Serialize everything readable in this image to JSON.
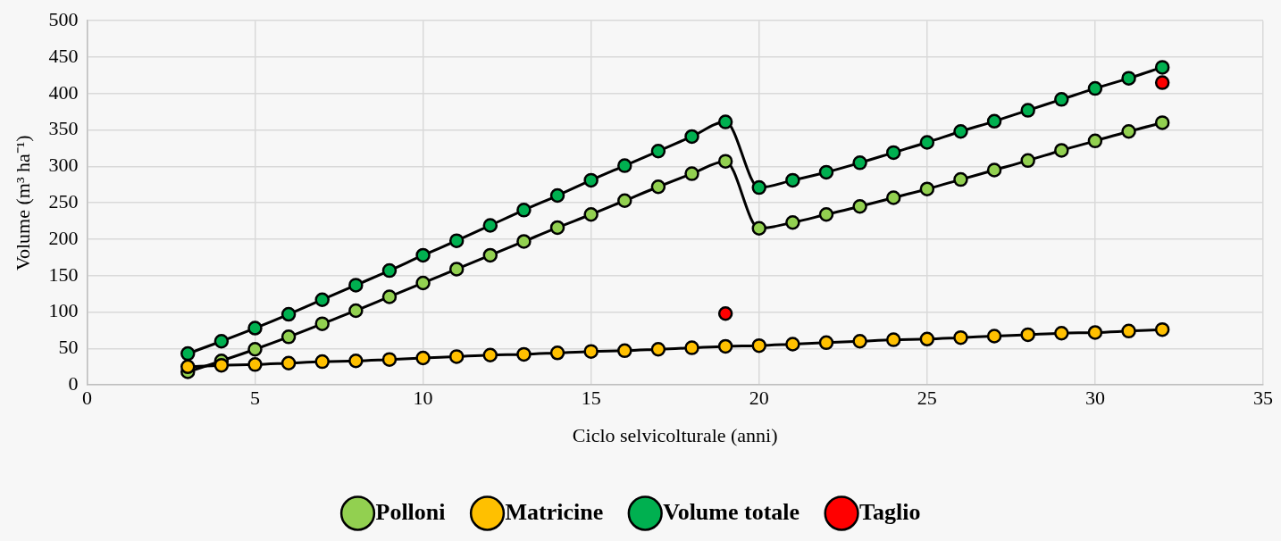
{
  "chart_data": {
    "type": "line",
    "xlabel": "Ciclo selvicolturale (anni)",
    "ylabel": "Volume (m³ ha⁻¹)",
    "xlim": [
      0,
      35
    ],
    "xticks": [
      0,
      5,
      10,
      15,
      20,
      25,
      30,
      35
    ],
    "ylim": [
      0,
      500
    ],
    "yticks": [
      0,
      50,
      100,
      150,
      200,
      250,
      300,
      350,
      400,
      450,
      500
    ],
    "grid": true,
    "legend": "bottom",
    "marker": "circle",
    "series": [
      {
        "name": "Polloni",
        "color": "#92d050",
        "x": [
          3,
          4,
          5,
          6,
          7,
          8,
          9,
          10,
          11,
          12,
          13,
          14,
          15,
          16,
          17,
          18,
          19,
          20,
          21,
          22,
          23,
          24,
          25,
          26,
          27,
          28,
          29,
          30,
          31,
          32
        ],
        "values": [
          18,
          33,
          49,
          66,
          84,
          102,
          121,
          140,
          159,
          178,
          197,
          216,
          234,
          253,
          272,
          290,
          307,
          215,
          223,
          234,
          245,
          257,
          269,
          282,
          295,
          308,
          322,
          335,
          348,
          360
        ]
      },
      {
        "name": "Matricine",
        "color": "#ffc000",
        "x": [
          3,
          4,
          5,
          6,
          7,
          8,
          9,
          10,
          11,
          12,
          13,
          14,
          15,
          16,
          17,
          18,
          19,
          20,
          21,
          22,
          23,
          24,
          25,
          26,
          27,
          28,
          29,
          30,
          31,
          32
        ],
        "values": [
          25,
          27,
          28,
          30,
          32,
          33,
          35,
          37,
          39,
          41,
          42,
          44,
          46,
          47,
          49,
          51,
          53,
          54,
          56,
          58,
          60,
          62,
          63,
          65,
          67,
          69,
          71,
          72,
          74,
          76
        ]
      },
      {
        "name": "Volume totale",
        "color": "#00b050",
        "x": [
          3,
          4,
          5,
          6,
          7,
          8,
          9,
          10,
          11,
          12,
          13,
          14,
          15,
          16,
          17,
          18,
          19,
          20,
          21,
          22,
          23,
          24,
          25,
          26,
          27,
          28,
          29,
          30,
          31,
          32
        ],
        "values": [
          43,
          60,
          78,
          97,
          117,
          137,
          157,
          178,
          198,
          219,
          240,
          260,
          281,
          301,
          321,
          341,
          361,
          271,
          281,
          292,
          305,
          319,
          333,
          348,
          362,
          377,
          392,
          407,
          421,
          436
        ]
      },
      {
        "name": "Taglio",
        "type": "scatter",
        "color": "#ff0000",
        "x": [
          19,
          32
        ],
        "values": [
          98,
          415
        ]
      }
    ]
  }
}
